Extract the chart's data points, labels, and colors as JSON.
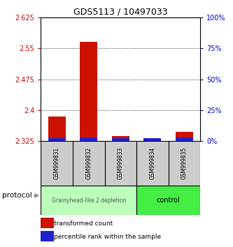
{
  "title": "GDS5113 / 10497033",
  "samples": [
    "GSM999831",
    "GSM999832",
    "GSM999833",
    "GSM999834",
    "GSM999835"
  ],
  "red_values": [
    2.385,
    2.565,
    2.338,
    2.328,
    2.348
  ],
  "blue_values": [
    2.333,
    2.334,
    2.333,
    2.333,
    2.335
  ],
  "red_base": 2.325,
  "ylim": [
    2.325,
    2.625
  ],
  "yticks_left": [
    2.325,
    2.4,
    2.475,
    2.55,
    2.625
  ],
  "yticks_right": [
    0,
    25,
    50,
    75,
    100
  ],
  "left_color": "#cc0000",
  "right_color": "#0000cc",
  "bar_color_red": "#cc1100",
  "bar_color_blue": "#2222cc",
  "group1_label": "Grainyhead-like 2 depletion",
  "group2_label": "control",
  "group1_color": "#bbffbb",
  "group2_color": "#44ee44",
  "protocol_label": "protocol",
  "legend_red": "transformed count",
  "legend_blue": "percentile rank within the sample",
  "background_color": "#ffffff",
  "sample_cell_color": "#cccccc",
  "bar_width": 0.55
}
